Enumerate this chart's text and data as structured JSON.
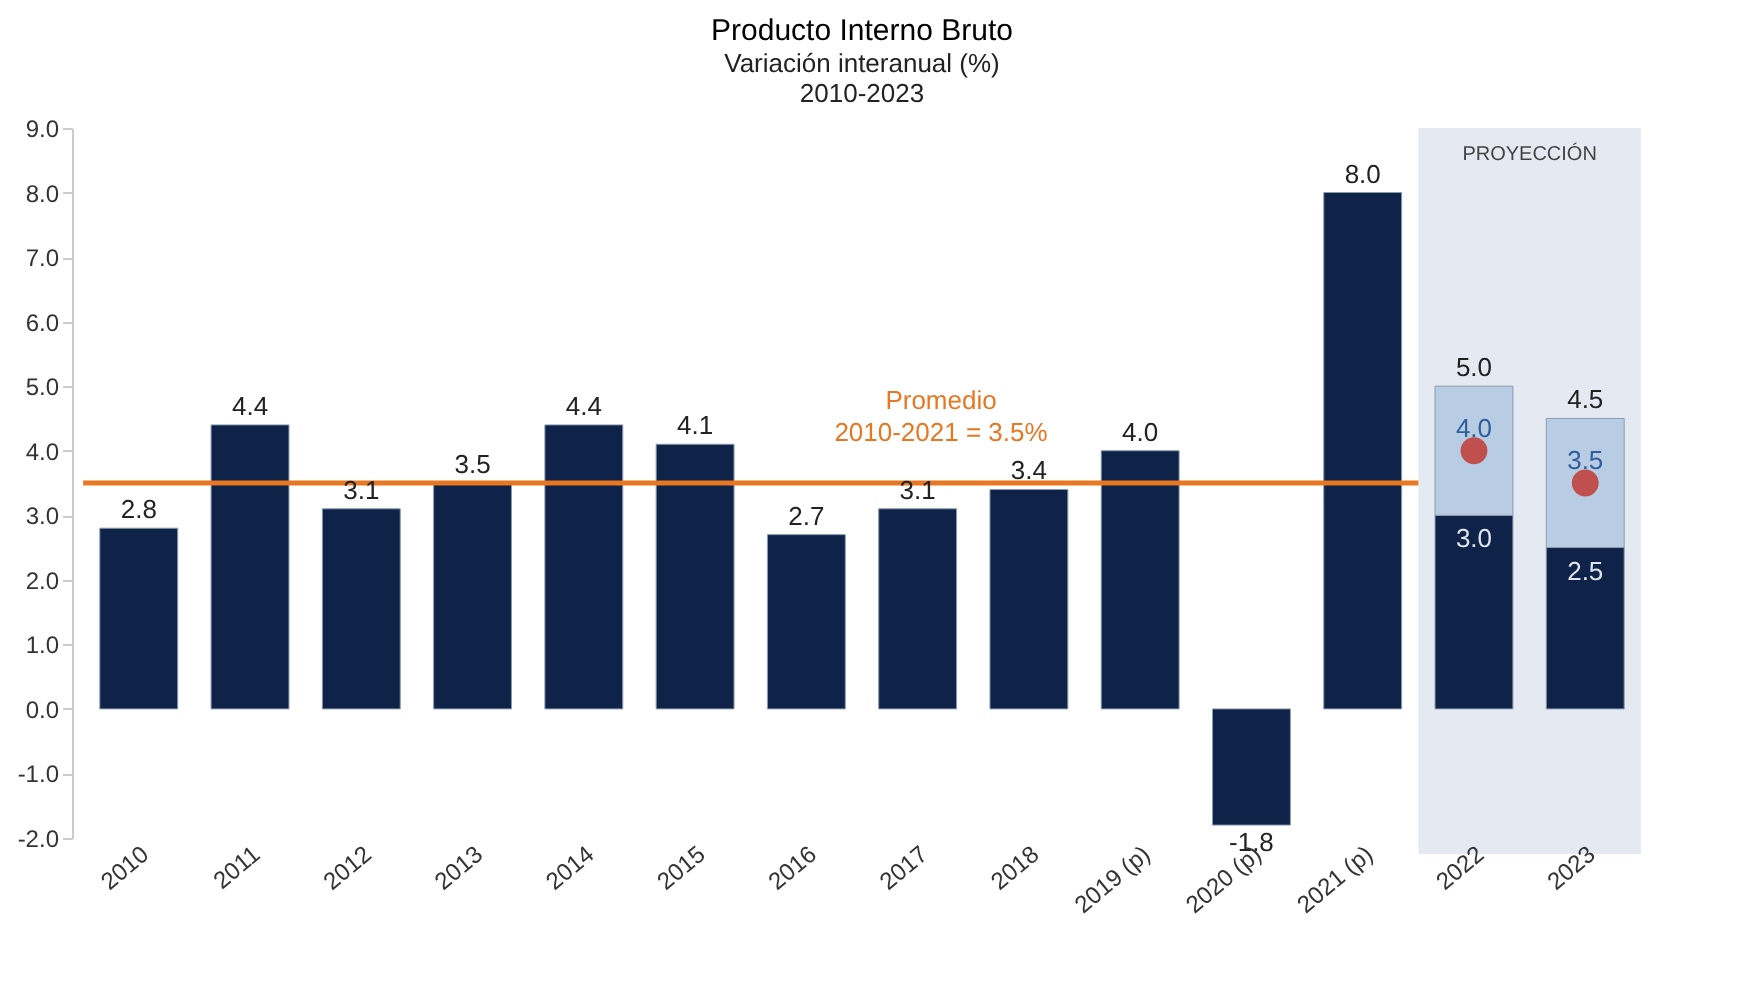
{
  "chart_data": {
    "type": "bar",
    "title": "Producto Interno Bruto",
    "subtitle": "Variación interanual (%)\n2010-2023",
    "categories": [
      "2010",
      "2011",
      "2012",
      "2013",
      "2014",
      "2015",
      "2016",
      "2017",
      "2018",
      "2019 (p)",
      "2020 (p)",
      "2021 (p)",
      "2022",
      "2023"
    ],
    "stacked": true,
    "series": [
      {
        "color": "#0f2247",
        "values": [
          2.8,
          4.4,
          3.1,
          3.5,
          4.4,
          4.1,
          2.7,
          3.1,
          3.4,
          4.0,
          -1.8,
          8.0,
          3.0,
          2.5
        ],
        "value_labels": [
          "2.8",
          "4.4",
          "3.1",
          "3.5",
          "4.4",
          "4.1",
          "2.7",
          "3.1",
          "3.4",
          "4.0",
          "-1.8",
          "8.0",
          "3.0",
          "2.5"
        ]
      },
      {
        "color": "#b8cce4",
        "values": [
          null,
          null,
          null,
          null,
          null,
          null,
          null,
          null,
          null,
          null,
          null,
          null,
          2.0,
          2.0
        ]
      },
      {
        "type": "scatter",
        "color": "#c0504d",
        "values": [
          null,
          null,
          null,
          null,
          null,
          null,
          null,
          null,
          null,
          null,
          null,
          null,
          4.0,
          3.5
        ],
        "value_labels": [
          null,
          null,
          null,
          null,
          null,
          null,
          null,
          null,
          null,
          null,
          null,
          null,
          "4.0",
          "3.5"
        ]
      }
    ],
    "totals": [
      null,
      null,
      null,
      null,
      null,
      null,
      null,
      null,
      null,
      null,
      null,
      null,
      "5.0",
      "4.5"
    ],
    "ylim": [
      -2,
      9
    ],
    "yticks": [
      {
        "value": -2,
        "label": "-2.0"
      },
      {
        "value": -1,
        "label": "-1.0"
      },
      {
        "value": 0,
        "label": "0.0"
      },
      {
        "value": 1,
        "label": "1.0"
      },
      {
        "value": 2,
        "label": "2.0"
      },
      {
        "value": 3,
        "label": "3.0"
      },
      {
        "value": 4,
        "label": "4.0"
      },
      {
        "value": 5,
        "label": "5.0"
      },
      {
        "value": 6,
        "label": "6.0"
      },
      {
        "value": 7,
        "label": "7.0"
      },
      {
        "value": 8,
        "label": "8.0"
      },
      {
        "value": 9,
        "label": "9.0"
      }
    ],
    "ref_lines": [
      {
        "axis": "y",
        "value": 3.5,
        "label": "Promedio\n2010-2021 = 3.5%",
        "color": "#e87722"
      }
    ],
    "bands": [
      {
        "axis": "x",
        "from": "2022",
        "to": "2023",
        "label": "PROYECCIÓN",
        "color": "#e5e9f1"
      }
    ],
    "grid": false
  }
}
